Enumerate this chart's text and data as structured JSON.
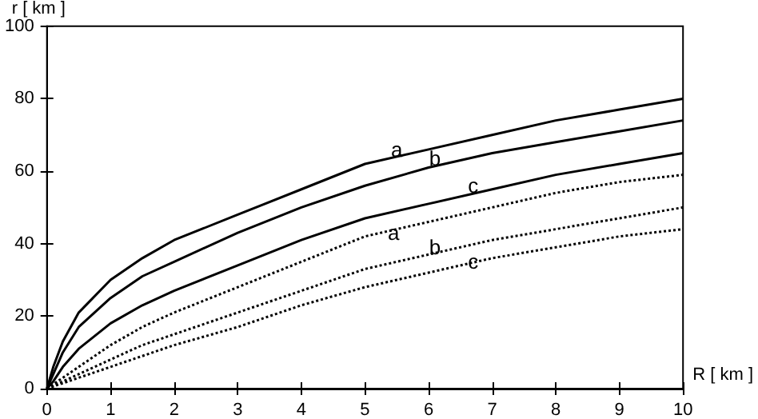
{
  "chart_data": {
    "type": "line",
    "xlabel": "R [ km ]",
    "ylabel": "r [ km ]",
    "xlim": [
      0,
      10
    ],
    "ylim": [
      0,
      100
    ],
    "xticks": [
      0,
      1,
      2,
      3,
      4,
      5,
      6,
      7,
      8,
      9,
      10
    ],
    "yticks": [
      0,
      20,
      40,
      60,
      80,
      100
    ],
    "grid": false,
    "marker": "none",
    "series": [
      {
        "color": "#000000",
        "line_style": "solid",
        "x": [
          0,
          0.1,
          0.25,
          0.5,
          1,
          1.5,
          2,
          3,
          4,
          5,
          6,
          7,
          8,
          9,
          10
        ],
        "values": [
          0,
          6,
          13,
          21,
          30,
          36,
          41,
          48,
          55,
          62,
          66,
          70,
          74,
          77,
          80
        ]
      },
      {
        "color": "#000000",
        "line_style": "solid",
        "x": [
          0,
          0.1,
          0.25,
          0.5,
          1,
          1.5,
          2,
          3,
          4,
          5,
          6,
          7,
          8,
          9,
          10
        ],
        "values": [
          0,
          4,
          10,
          17,
          25,
          31,
          35,
          43,
          50,
          56,
          61,
          65,
          68,
          71,
          74
        ]
      },
      {
        "color": "#000000",
        "line_style": "solid",
        "x": [
          0,
          0.1,
          0.25,
          0.5,
          1,
          1.5,
          2,
          3,
          4,
          5,
          6,
          7,
          8,
          9,
          10
        ],
        "values": [
          0,
          2,
          6,
          11,
          18,
          23,
          27,
          34,
          41,
          47,
          51,
          55,
          59,
          62,
          65
        ]
      },
      {
        "color": "#000000",
        "line_style": "dotted",
        "x": [
          0,
          0.25,
          0.5,
          1,
          1.5,
          2,
          3,
          4,
          5,
          6,
          7,
          8,
          9,
          10
        ],
        "values": [
          0,
          3,
          6,
          12,
          17,
          21,
          28,
          35,
          42,
          46,
          50,
          54,
          57,
          59
        ]
      },
      {
        "color": "#000000",
        "line_style": "dotted",
        "x": [
          0,
          0.5,
          1,
          1.5,
          2,
          3,
          4,
          5,
          6,
          7,
          8,
          9,
          10
        ],
        "values": [
          0,
          4,
          8,
          12,
          15,
          21,
          27,
          33,
          37,
          41,
          44,
          47,
          50
        ]
      },
      {
        "color": "#000000",
        "line_style": "dotted",
        "x": [
          0,
          0.5,
          1,
          1.5,
          2,
          3,
          4,
          5,
          6,
          7,
          8,
          9,
          10
        ],
        "values": [
          0,
          3,
          6,
          9,
          12,
          17,
          23,
          28,
          32,
          36,
          39,
          42,
          44
        ]
      }
    ],
    "annotations": [
      {
        "text": "a",
        "x": 5.5,
        "y": 66
      },
      {
        "text": "b",
        "x": 6.1,
        "y": 63.5
      },
      {
        "text": "c",
        "x": 6.7,
        "y": 56
      },
      {
        "text": "a",
        "x": 5.45,
        "y": 43
      },
      {
        "text": "b",
        "x": 6.1,
        "y": 39
      },
      {
        "text": "c",
        "x": 6.7,
        "y": 35
      }
    ]
  }
}
